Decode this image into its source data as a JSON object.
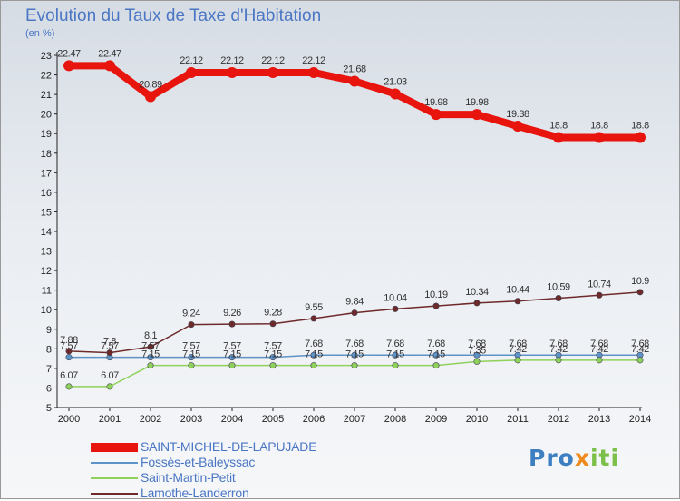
{
  "header": {
    "title": "Evolution du Taux de Taxe d'Habitation",
    "unit": "(en %)"
  },
  "logo": {
    "text": "Proxiti",
    "colors": [
      "#3d7fc1",
      "#ee8a1e",
      "#7cc04a"
    ]
  },
  "chart_data": {
    "type": "line",
    "title": "Evolution du Taux de Taxe d'Habitation",
    "ylabel": "(en %)",
    "xlabel": "",
    "x": [
      "2000",
      "2001",
      "2002",
      "2003",
      "2004",
      "2005",
      "2006",
      "2007",
      "2008",
      "2009",
      "2010",
      "2011",
      "2012",
      "2013",
      "2014"
    ],
    "ylim": [
      5,
      23
    ],
    "yticks": [
      5,
      6,
      7,
      8,
      9,
      10,
      11,
      12,
      13,
      14,
      15,
      16,
      17,
      18,
      19,
      20,
      21,
      22,
      23
    ],
    "grid": false,
    "legend_position": "bottom-left",
    "series": [
      {
        "name": "SAINT-MICHEL-DE-LAPUJADE",
        "color": "#e8140e",
        "values": [
          22.47,
          22.47,
          20.89,
          22.12,
          22.12,
          22.12,
          22.12,
          21.68,
          21.03,
          19.98,
          19.98,
          19.38,
          18.8,
          18.8,
          18.8
        ],
        "labels": [
          "22.47",
          "22.47",
          "20.89",
          "22.12",
          "22.12",
          "22.12",
          "22.12",
          "21.68",
          "21.03",
          "19.98",
          "19.98",
          "19.38",
          "18.8",
          "18.8",
          "18.8"
        ]
      },
      {
        "name": "Fossès-et-Baleyssac",
        "color": "#5d93c7",
        "values": [
          7.57,
          7.57,
          7.57,
          7.57,
          7.57,
          7.57,
          7.68,
          7.68,
          7.68,
          7.68,
          7.68,
          7.68,
          7.68,
          7.68,
          7.68
        ],
        "labels": [
          "7.57",
          "7.57",
          "7.57",
          "7.57",
          "7.57",
          "7.57",
          "7.68",
          "7.68",
          "7.68",
          "7.68",
          "7.68",
          "7.68",
          "7.68",
          "7.68",
          "7.68"
        ]
      },
      {
        "name": "Saint-Martin-Petit",
        "color": "#8fd15a",
        "values": [
          6.07,
          6.07,
          7.15,
          7.15,
          7.15,
          7.15,
          7.15,
          7.15,
          7.15,
          7.15,
          7.35,
          7.42,
          7.42,
          7.42,
          7.42
        ],
        "labels": [
          "6.07",
          "6.07",
          "7.15",
          "7.15",
          "7.15",
          "7.15",
          "7.15",
          "7.15",
          "7.15",
          "7.15",
          "7.35",
          "7.42",
          "7.42",
          "7.42",
          "7.42"
        ]
      },
      {
        "name": "Lamothe-Landerron",
        "color": "#6e2a2a",
        "values": [
          7.88,
          7.8,
          8.1,
          9.24,
          9.26,
          9.28,
          9.55,
          9.84,
          10.04,
          10.19,
          10.34,
          10.44,
          10.59,
          10.74,
          10.9
        ],
        "labels": [
          "7.88",
          "7.8",
          "8.1",
          "9.24",
          "9.26",
          "9.28",
          "9.55",
          "9.84",
          "10.04",
          "10.19",
          "10.34",
          "10.44",
          "10.59",
          "10.74",
          "10.9"
        ]
      }
    ]
  }
}
